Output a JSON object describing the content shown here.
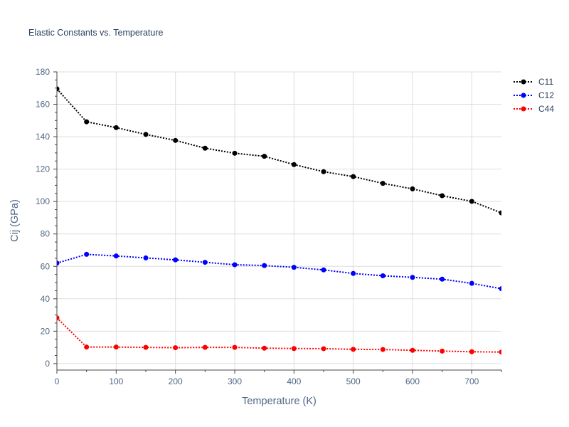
{
  "chart_data": {
    "type": "line",
    "title": "Elastic Constants vs. Temperature",
    "xlabel": "Temperature (K)",
    "ylabel": "Cij (GPa)",
    "xlim": [
      0,
      750
    ],
    "ylim": [
      -4,
      180
    ],
    "xticks": [
      0,
      100,
      200,
      300,
      400,
      500,
      600,
      700
    ],
    "yticks": [
      0,
      20,
      40,
      60,
      80,
      100,
      120,
      140,
      160,
      180
    ],
    "grid": true,
    "legend_position": "top-right",
    "x": [
      0,
      50,
      100,
      150,
      200,
      250,
      300,
      350,
      400,
      450,
      500,
      550,
      600,
      650,
      700,
      750
    ],
    "series": [
      {
        "name": "C11",
        "color": "#000000",
        "line_style": "dotted",
        "values": [
          169.5,
          149.2,
          145.6,
          141.4,
          137.7,
          132.9,
          129.8,
          127.9,
          122.8,
          118.4,
          115.4,
          111.2,
          107.8,
          103.6,
          100.1,
          93.0
        ]
      },
      {
        "name": "C12",
        "color": "#0000ff",
        "line_style": "dotted",
        "values": [
          62.0,
          67.4,
          66.4,
          65.2,
          64.0,
          62.5,
          61.0,
          60.5,
          59.4,
          57.8,
          55.6,
          54.2,
          53.2,
          52.1,
          49.5,
          46.2
        ]
      },
      {
        "name": "C44",
        "color": "#ff0000",
        "line_style": "dotted",
        "values": [
          28.2,
          10.2,
          10.2,
          10.0,
          9.8,
          10.0,
          10.0,
          9.5,
          9.3,
          9.2,
          8.8,
          8.7,
          8.2,
          7.7,
          7.3,
          7.1
        ]
      }
    ]
  }
}
